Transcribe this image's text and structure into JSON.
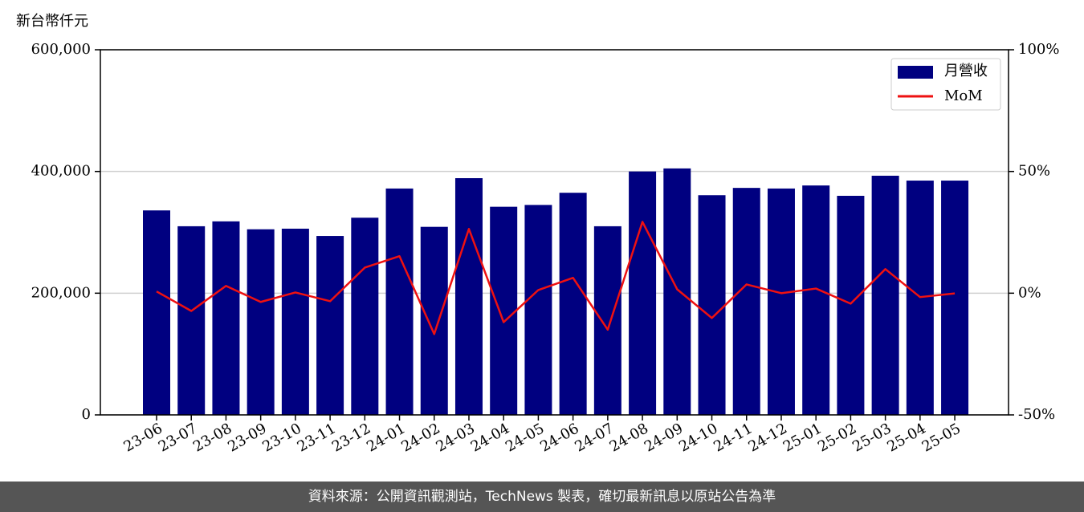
{
  "chart_data": {
    "type": "bar_line",
    "y_label": "新台幣仟元",
    "footer": "資料來源：公開資訊觀測站，TechNews 製表，確切最新訊息以原站公告為準",
    "categories": [
      "23-06",
      "23-07",
      "23-08",
      "23-09",
      "23-10",
      "23-11",
      "23-12",
      "24-01",
      "24-02",
      "24-03",
      "24-04",
      "24-05",
      "24-06",
      "24-07",
      "24-08",
      "24-09",
      "24-10",
      "24-11",
      "24-12",
      "25-01",
      "25-02",
      "25-03",
      "25-04",
      "25-05"
    ],
    "series": [
      {
        "name": "月營收",
        "type": "bar",
        "color": "#000080",
        "values": [
          336000,
          310000,
          318000,
          305000,
          306000,
          294000,
          324000,
          372000,
          309000,
          389000,
          342000,
          345000,
          365000,
          310000,
          400000,
          405000,
          361000,
          373000,
          372000,
          377000,
          360000,
          393000,
          385000,
          385000
        ]
      },
      {
        "name": "MoM",
        "type": "line",
        "color": "#ee1111",
        "axis": "y2",
        "values": [
          0.7,
          -7.3,
          3,
          -3.6,
          0.3,
          -3.3,
          10.5,
          15.2,
          -16.8,
          26.4,
          -11.9,
          1.3,
          6.3,
          -15,
          29.3,
          1.6,
          -10.2,
          3.6,
          0,
          1.9,
          -4.3,
          9.9,
          -1.6,
          -0.1
        ]
      }
    ],
    "ylim": [
      0,
      600000
    ],
    "yticks": [
      0,
      {
        "value": 200000,
        "label": "200,000"
      },
      {
        "value": 400000,
        "label": "400,000"
      },
      {
        "value": 600000,
        "label": "600,000"
      }
    ],
    "y2lim": [
      -50,
      100
    ],
    "y2ticks": [
      {
        "value": -50,
        "label": "-50%"
      },
      {
        "value": 0,
        "label": "0%"
      },
      {
        "value": 50,
        "label": "50%"
      },
      {
        "value": 100,
        "label": "100%"
      }
    ],
    "grid": true,
    "legend": "upper right"
  }
}
